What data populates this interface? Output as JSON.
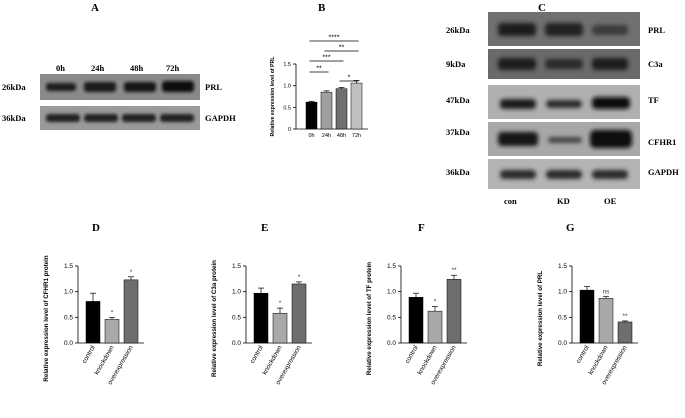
{
  "panels": {
    "A": {
      "letter": "A",
      "time_labels": [
        "0h",
        "24h",
        "48h",
        "72h"
      ],
      "rows": [
        {
          "kda": "26kDa",
          "protein": "PRL"
        },
        {
          "kda": "36kDa",
          "protein": "GAPDH"
        }
      ]
    },
    "C": {
      "letter": "C",
      "rows": [
        {
          "kda": "26kDa",
          "protein": "PRL"
        },
        {
          "kda": "9kDa",
          "protein": "C3a"
        },
        {
          "kda": "47kDa",
          "protein": "TF"
        },
        {
          "kda": "37kDa",
          "protein": "CFHR1"
        },
        {
          "kda": "36kDa",
          "protein": "GAPDH"
        }
      ],
      "lane_labels": [
        "con",
        "KD",
        "OE"
      ]
    }
  },
  "chart_data": [
    {
      "panel": "B",
      "type": "bar",
      "ylabel": "Relative expression level of PRL",
      "categories": [
        "0h",
        "24h",
        "48h",
        "72h"
      ],
      "values": [
        0.62,
        0.85,
        0.93,
        1.06
      ],
      "errors": [
        0.02,
        0.03,
        0.03,
        0.06
      ],
      "colors": [
        "#000000",
        "#a0a0a0",
        "#707070",
        "#c0c0c0"
      ],
      "ylim": [
        0,
        1.5
      ],
      "yticks": [
        "0",
        "0.5",
        "1.0",
        "1.5"
      ],
      "significance": [
        {
          "from": 0,
          "to": 3,
          "label": "****"
        },
        {
          "from": 1,
          "to": 3,
          "label": "**"
        },
        {
          "from": 0,
          "to": 2,
          "label": "***"
        },
        {
          "from": 0,
          "to": 1,
          "label": "**"
        },
        {
          "from": 2,
          "to": 3,
          "label": "*"
        }
      ]
    },
    {
      "panel": "D",
      "type": "bar",
      "ylabel": "Relative expression level of CFHR1 protein",
      "categories": [
        "control",
        "knockdown",
        "overexpression"
      ],
      "values": [
        0.81,
        0.46,
        1.23
      ],
      "errors": [
        0.16,
        0.04,
        0.06
      ],
      "colors": [
        "#000000",
        "#a8a8a8",
        "#6e6e6e"
      ],
      "ylim": [
        0,
        1.5
      ],
      "yticks": [
        "0.0",
        "0.5",
        "1.0",
        "1.5"
      ],
      "annotations": [
        "",
        "*",
        "*"
      ]
    },
    {
      "panel": "E",
      "type": "bar",
      "ylabel": "Relative expression level of C3a protein",
      "categories": [
        "control",
        "knockdown",
        "overexpression"
      ],
      "values": [
        0.97,
        0.58,
        1.15
      ],
      "errors": [
        0.1,
        0.1,
        0.04
      ],
      "colors": [
        "#000000",
        "#a8a8a8",
        "#6e6e6e"
      ],
      "ylim": [
        0,
        1.5
      ],
      "yticks": [
        "0.0",
        "0.5",
        "1.0",
        "1.5"
      ],
      "annotations": [
        "",
        "*",
        "*"
      ]
    },
    {
      "panel": "F",
      "type": "bar",
      "ylabel": "Relative expression level of TF protein",
      "categories": [
        "control",
        "knockdown",
        "overexpression"
      ],
      "values": [
        0.89,
        0.62,
        1.24
      ],
      "errors": [
        0.08,
        0.09,
        0.08
      ],
      "colors": [
        "#000000",
        "#a8a8a8",
        "#6e6e6e"
      ],
      "ylim": [
        0,
        1.5
      ],
      "yticks": [
        "0.0",
        "0.5",
        "1.0",
        "1.5"
      ],
      "annotations": [
        "",
        "*",
        "**"
      ]
    },
    {
      "panel": "G",
      "type": "bar",
      "ylabel": "Relative expression level of PRL",
      "categories": [
        "control",
        "knockdown",
        "overexpression"
      ],
      "values": [
        1.03,
        0.87,
        0.41
      ],
      "errors": [
        0.07,
        0.04,
        0.02
      ],
      "colors": [
        "#000000",
        "#a8a8a8",
        "#6e6e6e"
      ],
      "ylim": [
        0,
        1.5
      ],
      "yticks": [
        "0.0",
        "0.5",
        "1.0",
        "1.5"
      ],
      "annotations": [
        "",
        "ns",
        "**"
      ]
    }
  ]
}
